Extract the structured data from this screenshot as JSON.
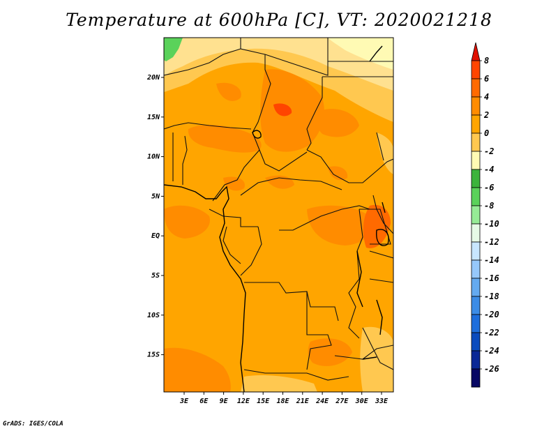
{
  "title": "Temperature at 600hPa [C], VT: 2020021218",
  "credit": "GrADS: IGES/COLA",
  "map": {
    "lat_labels": [
      "20N",
      "15N",
      "10N",
      "5N",
      "EQ",
      "5S",
      "10S",
      "15S"
    ],
    "lon_labels": [
      "3E",
      "6E",
      "9E",
      "12E",
      "15E",
      "18E",
      "21E",
      "24E",
      "27E",
      "30E",
      "33E"
    ],
    "field_colors": {
      "dominant": "#FFA500",
      "warm_2_4": "#FF8C00",
      "warm_4_6": "#FF6A00",
      "warm_6_8": "#FF4500",
      "cool_0_2": "#FFC850",
      "cool_m2_0": "#FFE190",
      "pale_m4_m2": "#FFFAB4",
      "green_m6_m4": "#5AD25A"
    }
  },
  "colorbar": {
    "labels": [
      "8",
      "6",
      "4",
      "2",
      "0",
      "-2",
      "-4",
      "-6",
      "-8",
      "-10",
      "-12",
      "-14",
      "-16",
      "-18",
      "-20",
      "-22",
      "-24",
      "-26"
    ],
    "colors": [
      "#E01000",
      "#FF4500",
      "#FF6A00",
      "#FF8C00",
      "#FFA500",
      "#FFC850",
      "#FFFAB4",
      "#3CB43C",
      "#5AD25A",
      "#96EB96",
      "#E6FAE6",
      "#C8E6FF",
      "#96C8FA",
      "#64AAF0",
      "#3C8CE6",
      "#1E6EDC",
      "#0A4BBE",
      "#0A2896",
      "#080864",
      "#D2D2F0"
    ]
  }
}
